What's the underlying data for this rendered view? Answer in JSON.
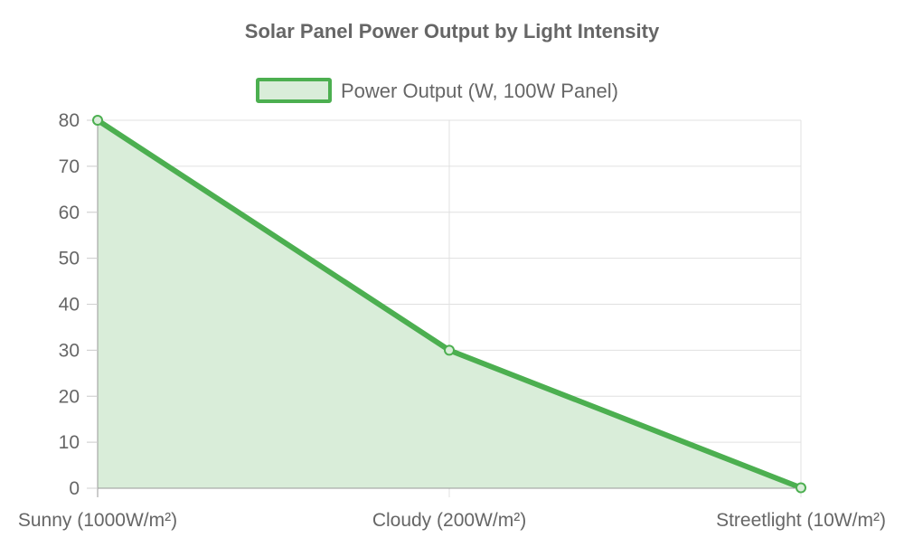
{
  "chart_data": {
    "type": "area",
    "title": "Solar Panel Power Output by Light Intensity",
    "categories": [
      "Sunny (1000W/m²)",
      "Cloudy (200W/m²)",
      "Streetlight (10W/m²)"
    ],
    "series": [
      {
        "name": "Power Output (W, 100W Panel)",
        "values": [
          80,
          30,
          0.1
        ]
      }
    ],
    "ylim": [
      0,
      80
    ],
    "yticks": [
      0,
      10,
      20,
      30,
      40,
      50,
      60,
      70,
      80
    ],
    "grid": true,
    "legend_position": "top",
    "colors": {
      "line": "#4caf50",
      "fill": "#d9edd9",
      "grid": "#e0e0e0",
      "text": "#666666"
    }
  }
}
